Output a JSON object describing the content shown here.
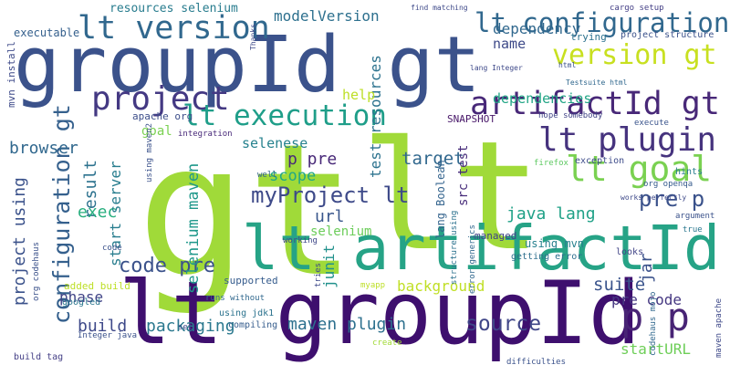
{
  "words": [
    {
      "text": "gt",
      "color": "#a0da39"
    },
    {
      "text": "lt",
      "color": "#a0da39"
    },
    {
      "text": "groupId gt",
      "color": "#3b528b"
    },
    {
      "text": "lt groupId",
      "color": "#3e0f6e"
    },
    {
      "text": "lt artifactId",
      "color": "#26a386"
    },
    {
      "text": "artifactId gt",
      "color": "#482878"
    },
    {
      "text": "lt configuration",
      "color": "#31688e"
    },
    {
      "text": "lt version",
      "color": "#31688e"
    },
    {
      "text": "version gt",
      "color": "#c8e020"
    },
    {
      "text": "project",
      "color": "#443983"
    },
    {
      "text": "lt execution",
      "color": "#1f9e89"
    },
    {
      "text": "lt plugin",
      "color": "#46337e"
    },
    {
      "text": "lt goal",
      "color": "#7ad151"
    },
    {
      "text": "myProject lt",
      "color": "#3e4a89"
    },
    {
      "text": "configuration gt",
      "color": "#35608d"
    },
    {
      "text": "project using",
      "color": "#3b528b"
    },
    {
      "text": "browser",
      "color": "#31688e"
    },
    {
      "text": "result",
      "color": "#2c728e"
    },
    {
      "text": "code pre",
      "color": "#3b528b"
    },
    {
      "text": "exec",
      "color": "#29af7f"
    },
    {
      "text": "start server",
      "color": "#287d8e"
    },
    {
      "text": "selenium maven",
      "color": "#1f988b"
    },
    {
      "text": "p pre",
      "color": "#482878"
    },
    {
      "text": "scope",
      "color": "#22a884"
    },
    {
      "text": "test resources",
      "color": "#2c728e"
    },
    {
      "text": "target",
      "color": "#31688e"
    },
    {
      "text": "java lang",
      "color": "#1fa187"
    },
    {
      "text": "pre p",
      "color": "#3b528b"
    },
    {
      "text": "p p",
      "color": "#482475"
    },
    {
      "text": "pre code",
      "color": "#453781"
    },
    {
      "text": "source",
      "color": "#404688"
    },
    {
      "text": "suite",
      "color": "#3a548c"
    },
    {
      "text": "maven plugin",
      "color": "#2d708e"
    },
    {
      "text": "packaging",
      "color": "#2a788e"
    },
    {
      "text": "build",
      "color": "#3e4989"
    },
    {
      "text": "background",
      "color": "#c0df25"
    },
    {
      "text": "phase",
      "color": "#414487"
    },
    {
      "text": "url",
      "color": "#39568c"
    },
    {
      "text": "selenium",
      "color": "#6ccd5a"
    },
    {
      "text": "junit",
      "color": "#21918c"
    },
    {
      "text": "jar",
      "color": "#3b528b"
    },
    {
      "text": "startURL",
      "color": "#6ece58"
    },
    {
      "text": "selenese",
      "color": "#26828e"
    },
    {
      "text": "goal",
      "color": "#7ad151"
    },
    {
      "text": "help",
      "color": "#bddf26"
    },
    {
      "text": "dependencies",
      "color": "#21a585"
    },
    {
      "text": "dependency",
      "color": "#31688e"
    },
    {
      "text": "name",
      "color": "#3e4a89"
    },
    {
      "text": "modelVersion",
      "color": "#2d708e"
    },
    {
      "text": "resources selenium",
      "color": "#287c8e"
    },
    {
      "text": "executable",
      "color": "#35608d"
    },
    {
      "text": "mvn install",
      "color": "#3e4a89"
    },
    {
      "text": "SNAPSHOT",
      "color": "#481769"
    },
    {
      "text": "apache org",
      "color": "#3d4e8a"
    },
    {
      "text": "src test",
      "color": "#472c7a"
    },
    {
      "text": "lang Boolean",
      "color": "#33638d"
    },
    {
      "text": "using mvn",
      "color": "#27808e"
    },
    {
      "text": "getting error",
      "color": "#2e6f8e"
    },
    {
      "text": "managed",
      "color": "#404387"
    },
    {
      "text": "cargo setup",
      "color": "#433e85"
    },
    {
      "text": "project structure",
      "color": "#3b528b"
    },
    {
      "text": "trying",
      "color": "#2c728e"
    },
    {
      "text": "find matching",
      "color": "#3e4989"
    },
    {
      "text": "integration",
      "color": "#482979"
    },
    {
      "text": "hope somebody",
      "color": "#414487"
    },
    {
      "text": "execute",
      "color": "#3a548c"
    },
    {
      "text": "exception",
      "color": "#3e4c8a"
    },
    {
      "text": "hints",
      "color": "#287d8e"
    },
    {
      "text": "org openqa",
      "color": "#375b8d"
    },
    {
      "text": "argument",
      "color": "#3b528b"
    },
    {
      "text": "true",
      "color": "#2a778e"
    },
    {
      "text": "looks",
      "color": "#414487"
    },
    {
      "text": "firefox",
      "color": "#5ec962"
    },
    {
      "text": "working",
      "color": "#3f4889"
    },
    {
      "text": "well",
      "color": "#33628d"
    },
    {
      "text": "supported",
      "color": "#365c8d"
    },
    {
      "text": "compiling",
      "color": "#365d8d"
    },
    {
      "text": "using jdk1",
      "color": "#2c738e"
    },
    {
      "text": "runs without",
      "color": "#31688e"
    },
    {
      "text": "googled",
      "color": "#2a768e"
    },
    {
      "text": "added build",
      "color": "#bddf26"
    },
    {
      "text": "Integer java",
      "color": "#3b528b"
    },
    {
      "text": "build tag",
      "color": "#433e85"
    },
    {
      "text": "set",
      "color": "#3f4788"
    },
    {
      "text": "create",
      "color": "#a2da37"
    },
    {
      "text": "difficulties",
      "color": "#3b528b"
    },
    {
      "text": "myapp",
      "color": "#bddf26"
    },
    {
      "text": "tries",
      "color": "#3e4a89"
    },
    {
      "text": "Testsuite html",
      "color": "#31688e"
    },
    {
      "text": "html",
      "color": "#3b528b"
    },
    {
      "text": "lang Integer",
      "color": "#3e4989"
    },
    {
      "text": "org codehaus",
      "color": "#3b528b"
    },
    {
      "text": "maven apache",
      "color": "#3e4989"
    },
    {
      "text": "codehaus mojo",
      "color": "#31688e"
    },
    {
      "text": "using maven2",
      "color": "#3b528b"
    },
    {
      "text": "error generics",
      "color": "#31688e"
    },
    {
      "text": "structure using",
      "color": "#2c728e"
    },
    {
      "text": "works perfectly",
      "color": "#3e4989"
    },
    {
      "text": "code",
      "color": "#3b528b"
    },
    {
      "text": "Thanks",
      "color": "#3e4a89"
    }
  ]
}
